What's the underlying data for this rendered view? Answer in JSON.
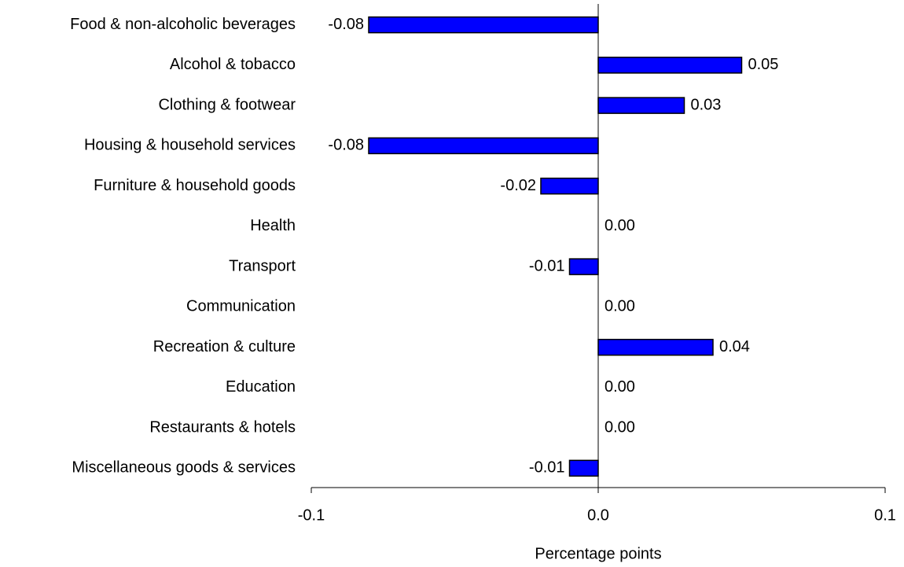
{
  "chart_data": {
    "type": "bar",
    "orientation": "horizontal",
    "categories": [
      "Food & non-alcoholic beverages",
      "Alcohol & tobacco",
      "Clothing & footwear",
      "Housing & household services",
      "Furniture & household goods",
      "Health",
      "Transport",
      "Communication",
      "Recreation & culture",
      "Education",
      "Restaurants & hotels",
      "Miscellaneous goods & services"
    ],
    "values": [
      -0.08,
      0.05,
      0.03,
      -0.08,
      -0.02,
      0,
      -0.01,
      0,
      0.04,
      0,
      0,
      -0.01
    ],
    "value_labels": [
      "-0.08",
      "0.05",
      "0.03",
      "-0.08",
      "-0.02",
      "0.00",
      "-0.01",
      "0.00",
      "0.04",
      "0.00",
      "0.00",
      "-0.01"
    ],
    "color": "#0000ff",
    "xlim": [
      -0.1,
      0.1
    ],
    "xticks": [
      -0.1,
      {
        "value": 0,
        "label": "0.0"
      },
      0.1
    ],
    "xlabel": "Percentage points"
  }
}
